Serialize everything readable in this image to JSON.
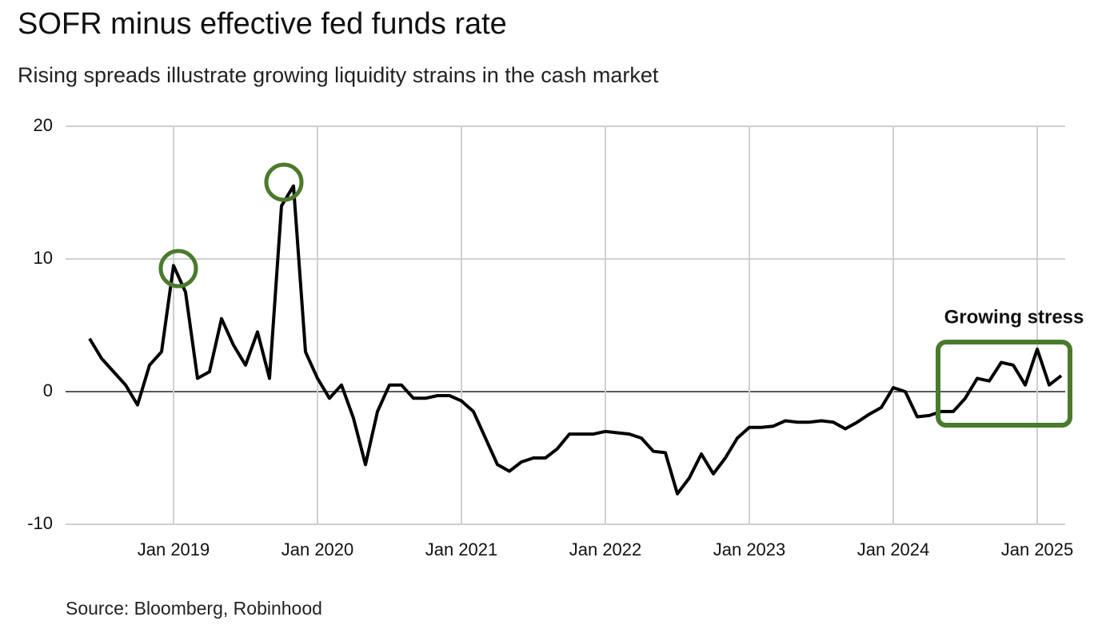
{
  "chart_data": {
    "type": "line",
    "title": "SOFR minus effective fed funds rate",
    "subtitle": "Rising spreads illustrate growing liquidity strains in the cash market",
    "source": "Source: Bloomberg, Robinhood",
    "annotation": "Growing stress",
    "color": "#000000",
    "grid": true,
    "xlim": [
      "2018-04",
      "2025-03"
    ],
    "xticks": [
      {
        "value": "2019-01",
        "label": "Jan 2019"
      },
      {
        "value": "2020-01",
        "label": "Jan 2020"
      },
      {
        "value": "2021-01",
        "label": "Jan 2021"
      },
      {
        "value": "2022-01",
        "label": "Jan 2022"
      },
      {
        "value": "2023-01",
        "label": "Jan 2023"
      },
      {
        "value": "2024-01",
        "label": "Jan 2024"
      },
      {
        "value": "2025-01",
        "label": "Jan 2025"
      }
    ],
    "ylim": [
      -10,
      20
    ],
    "yticks": [
      -10,
      0,
      10,
      20
    ],
    "x": [
      "2018-06",
      "2018-07",
      "2018-08",
      "2018-09",
      "2018-10",
      "2018-11",
      "2018-12",
      "2019-01",
      "2019-02",
      "2019-03",
      "2019-04",
      "2019-05",
      "2019-06",
      "2019-07",
      "2019-08",
      "2019-09",
      "2019-10",
      "2019-11",
      "2019-12",
      "2020-01",
      "2020-02",
      "2020-03",
      "2020-04",
      "2020-05",
      "2020-06",
      "2020-07",
      "2020-08",
      "2020-09",
      "2020-10",
      "2020-11",
      "2020-12",
      "2021-01",
      "2021-02",
      "2021-03",
      "2021-04",
      "2021-05",
      "2021-06",
      "2021-07",
      "2021-08",
      "2021-09",
      "2021-10",
      "2021-11",
      "2021-12",
      "2022-01",
      "2022-02",
      "2022-03",
      "2022-04",
      "2022-05",
      "2022-06",
      "2022-07",
      "2022-08",
      "2022-09",
      "2022-10",
      "2022-11",
      "2022-12",
      "2023-01",
      "2023-02",
      "2023-03",
      "2023-04",
      "2023-05",
      "2023-06",
      "2023-07",
      "2023-08",
      "2023-09",
      "2023-10",
      "2023-11",
      "2023-12",
      "2024-01",
      "2024-02",
      "2024-03",
      "2024-04",
      "2024-05",
      "2024-06",
      "2024-07",
      "2024-08",
      "2024-09",
      "2024-10",
      "2024-11",
      "2024-12",
      "2025-01",
      "2025-02",
      "2025-03"
    ],
    "values": [
      4,
      2.5,
      1.5,
      0.5,
      -1,
      2,
      3,
      9.5,
      7.5,
      1,
      1.5,
      5.5,
      3.5,
      2,
      4.5,
      1,
      14,
      15.5,
      3,
      1,
      -0.5,
      0.5,
      -2,
      -5.5,
      -1.5,
      0.5,
      0.5,
      -0.5,
      -0.5,
      -0.3,
      -0.3,
      -0.7,
      -1.5,
      -3.5,
      -5.5,
      -6,
      -5.3,
      -5,
      -5,
      -4.3,
      -3.2,
      -3.2,
      -3.2,
      -3,
      -3.1,
      -3.2,
      -3.5,
      -4.5,
      -4.6,
      -7.7,
      -6.5,
      -4.7,
      -6.2,
      -5,
      -3.5,
      -2.7,
      -2.7,
      -2.6,
      -2.2,
      -2.3,
      -2.3,
      -2.2,
      -2.3,
      -2.8,
      -2.3,
      -1.7,
      -1.2,
      0.3,
      0,
      -1.9,
      -1.8,
      -1.5,
      -1.5,
      -0.5,
      1,
      0.8,
      2.2,
      2,
      0.5,
      3.2,
      0.5,
      1.2
    ]
  }
}
